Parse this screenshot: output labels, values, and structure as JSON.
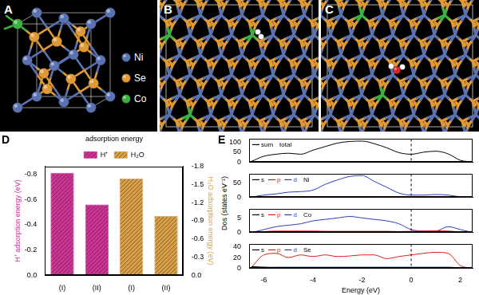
{
  "structures": [
    {
      "label": "A",
      "legend": [
        {
          "name": "Ni",
          "color": "#5a72b0"
        },
        {
          "name": "Se",
          "color": "#e09a35"
        },
        {
          "name": "Co",
          "color": "#3cb043"
        }
      ]
    },
    {
      "label": "B"
    },
    {
      "label": "C"
    }
  ],
  "chart_data": [
    {
      "panel": "D",
      "type": "bar",
      "title": "adsorption energy",
      "categories": [
        "(I)",
        "(II)",
        "(I)",
        "(II)"
      ],
      "series": [
        {
          "name": "H⁺",
          "color": "#cc3399",
          "values": [
            -0.81,
            -0.56,
            null,
            null
          ]
        },
        {
          "name": "H₂O",
          "color": "#d9a04a",
          "values": [
            null,
            null,
            -1.6,
            -0.98
          ],
          "axis": "y2"
        }
      ],
      "ylabel": "H⁺ adsorption energy (eV)",
      "y2label": "H₂O adsorption energy (eV)",
      "ylim": [
        0,
        -0.86
      ],
      "yticks": [
        -0.8,
        -0.6,
        -0.4,
        -0.2,
        {
          "value": 0,
          "label": "0.0"
        }
      ],
      "y2lim": [
        0,
        -1.8
      ],
      "y2ticks": [
        {
          "value": 0,
          "label": "0.0"
        },
        -0.3,
        -0.6,
        -0.9,
        -1.2,
        -1.5,
        -1.8
      ],
      "legend": "top",
      "grid": false
    },
    {
      "panel": "E",
      "type": "line",
      "xlabel": "Energy (eV)",
      "ylabel": "Dos (states eV⁻¹)",
      "x": [
        -6.5,
        -6,
        -5.5,
        -5,
        -4.5,
        -4,
        -3.5,
        -3,
        -2.5,
        -2,
        -1.5,
        -1,
        -0.5,
        0,
        0.5,
        1,
        1.5,
        2,
        2.5
      ],
      "xlim": [
        -6.6,
        2.5
      ],
      "xticks": [
        -6,
        -4,
        -2,
        0,
        2
      ],
      "reference_line_x": 0,
      "subplots": [
        {
          "title": "total",
          "ylim": [
            0,
            115
          ],
          "yticks": [
            0,
            50,
            100
          ],
          "tick_labels": "y",
          "series": [
            {
              "name": "sum",
              "color": "#000000",
              "values": [
                5,
                30,
                40,
                45,
                40,
                60,
                78,
                95,
                103,
                105,
                92,
                72,
                48,
                40,
                50,
                55,
                42,
                10,
                2
              ]
            }
          ]
        },
        {
          "title": "Ni",
          "ylim": [
            0,
            80
          ],
          "yticks": [
            0,
            50
          ],
          "tick_labels": "y",
          "series": [
            {
              "name": "s",
              "color": "#000000",
              "values": [
                0,
                0.5,
                0.5,
                0.5,
                0.5,
                0.5,
                0.5,
                0.5,
                0.5,
                0.5,
                0.5,
                0.5,
                0.3,
                0.3,
                0.3,
                0.3,
                0.3,
                0.1,
                0
              ]
            },
            {
              "name": "p",
              "color": "#e0201b",
              "values": [
                0.5,
                1,
                1.5,
                1.5,
                1.5,
                1.5,
                1.5,
                2,
                2,
                2,
                1.5,
                1.5,
                1,
                1,
                1.5,
                1.5,
                1.5,
                0.5,
                0
              ]
            },
            {
              "name": "d",
              "color": "#2a3fc0",
              "values": [
                1,
                8,
                12,
                18,
                20,
                25,
                45,
                60,
                72,
                75,
                55,
                35,
                15,
                8,
                8,
                10,
                8,
                2,
                0
              ]
            }
          ]
        },
        {
          "title": "Co",
          "ylim": [
            0,
            8
          ],
          "yticks": [
            0,
            5
          ],
          "tick_labels": "y",
          "series": [
            {
              "name": "s",
              "color": "#000000",
              "values": [
                0,
                0.1,
                0.1,
                0.1,
                0.1,
                0.1,
                0.1,
                0.1,
                0.1,
                0.1,
                0.1,
                0.1,
                0.1,
                0.1,
                0.1,
                0.1,
                0.1,
                0.05,
                0
              ]
            },
            {
              "name": "p",
              "color": "#e0201b",
              "values": [
                0,
                0.3,
                0.5,
                0.5,
                0.5,
                0.5,
                0.4,
                0.4,
                0.4,
                0.4,
                0.4,
                0.4,
                0.3,
                0.4,
                0.5,
                0.6,
                0.5,
                0.2,
                0
              ]
            },
            {
              "name": "d",
              "color": "#2a3fc0",
              "values": [
                0,
                1,
                2,
                2.5,
                3,
                4,
                4.5,
                5,
                5.5,
                5,
                4.5,
                4,
                3,
                1,
                0.5,
                0.5,
                2,
                1,
                0
              ]
            }
          ]
        },
        {
          "title": "Se",
          "ylim": [
            0,
            45
          ],
          "yticks": [
            0,
            20,
            40
          ],
          "series": [
            {
              "name": "s",
              "color": "#000000",
              "values": [
                3,
                2,
                1,
                1,
                1,
                1,
                1,
                1,
                1,
                1,
                1,
                1,
                1,
                1,
                1,
                1,
                1,
                0.5,
                0
              ]
            },
            {
              "name": "p",
              "color": "#e0201b",
              "values": [
                2,
                25,
                28,
                20,
                25,
                22,
                25,
                22,
                23,
                25,
                25,
                18,
                22,
                25,
                28,
                30,
                28,
                5,
                0
              ]
            },
            {
              "name": "d",
              "color": "#2a3fc0",
              "values": [
                0.5,
                1.5,
                2,
                2,
                2,
                2,
                2,
                2,
                2,
                2,
                2,
                2,
                2,
                2,
                2,
                2,
                2,
                0.5,
                0
              ]
            }
          ]
        }
      ]
    }
  ]
}
